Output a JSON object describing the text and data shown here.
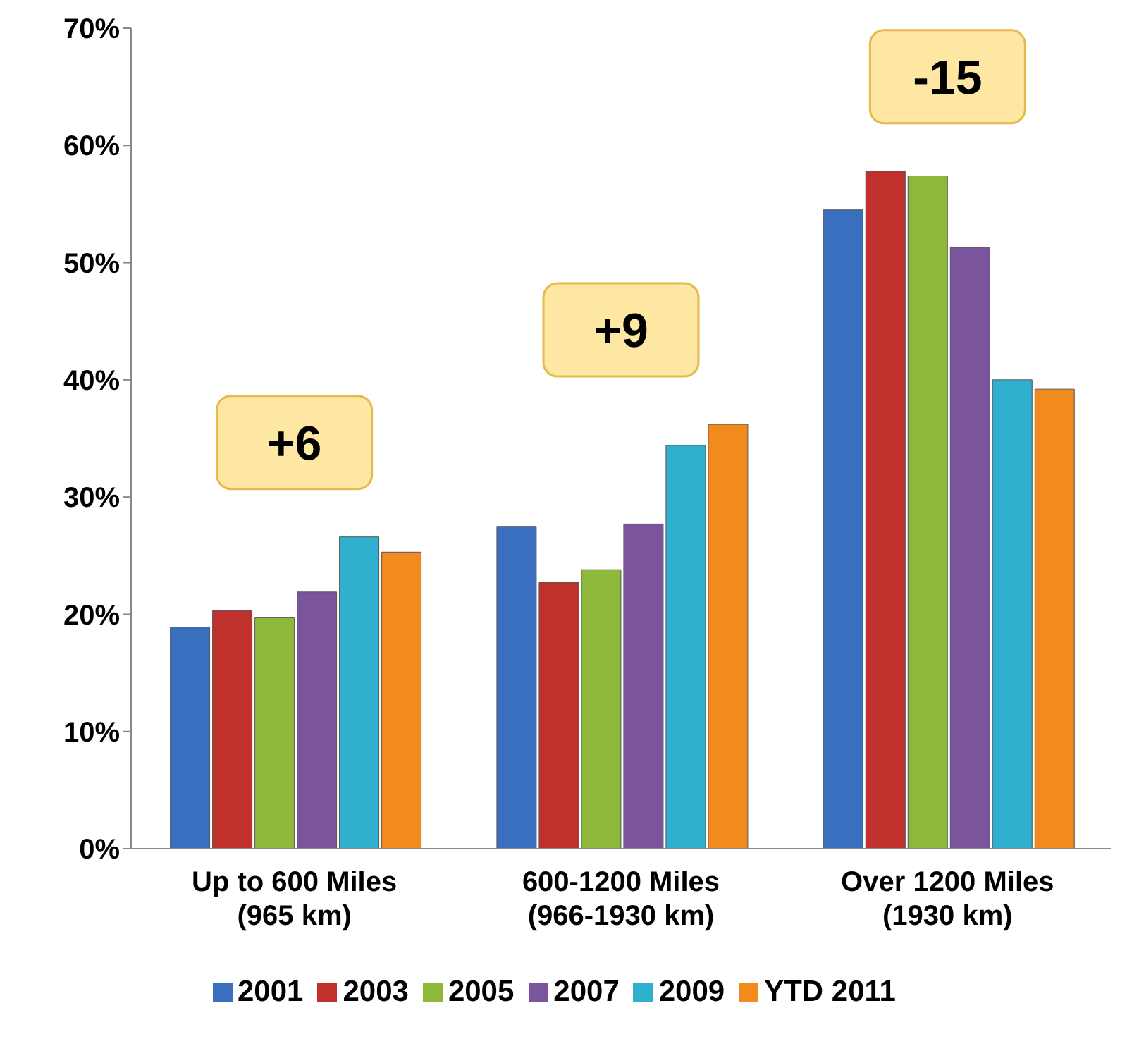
{
  "chart_data": {
    "type": "bar",
    "categories": [
      "Up to 600 Miles\n(965 km)",
      "600-1200 Miles\n(966-1930 km)",
      "Over 1200 Miles\n(1930 km)"
    ],
    "series": [
      {
        "name": "2001",
        "color": "#3a6fc0",
        "values": [
          18.9,
          27.5,
          54.5
        ]
      },
      {
        "name": "2003",
        "color": "#c0302c",
        "values": [
          20.3,
          22.7,
          57.8
        ]
      },
      {
        "name": "2005",
        "color": "#8db83a",
        "values": [
          19.7,
          23.8,
          57.4
        ]
      },
      {
        "name": "2007",
        "color": "#7a559e",
        "values": [
          21.9,
          27.7,
          51.3
        ]
      },
      {
        "name": "2009",
        "color": "#2fb0cf",
        "values": [
          26.6,
          34.4,
          40.0
        ]
      },
      {
        "name": "YTD 2011",
        "color": "#f38a1d",
        "values": [
          25.3,
          36.2,
          39.2
        ]
      }
    ],
    "ylim": [
      0,
      70
    ],
    "yticks": [
      {
        "value": 0,
        "label": "0%"
      },
      {
        "value": 10,
        "label": "10%"
      },
      {
        "value": 20,
        "label": "20%"
      },
      {
        "value": 30,
        "label": "30%"
      },
      {
        "value": 40,
        "label": "40%"
      },
      {
        "value": 50,
        "label": "50%"
      },
      {
        "value": 60,
        "label": "60%"
      },
      {
        "value": 70,
        "label": "70%"
      }
    ],
    "annotations": [
      "+6",
      "+9",
      "-15"
    ],
    "grid": false,
    "legend": "bottom"
  }
}
